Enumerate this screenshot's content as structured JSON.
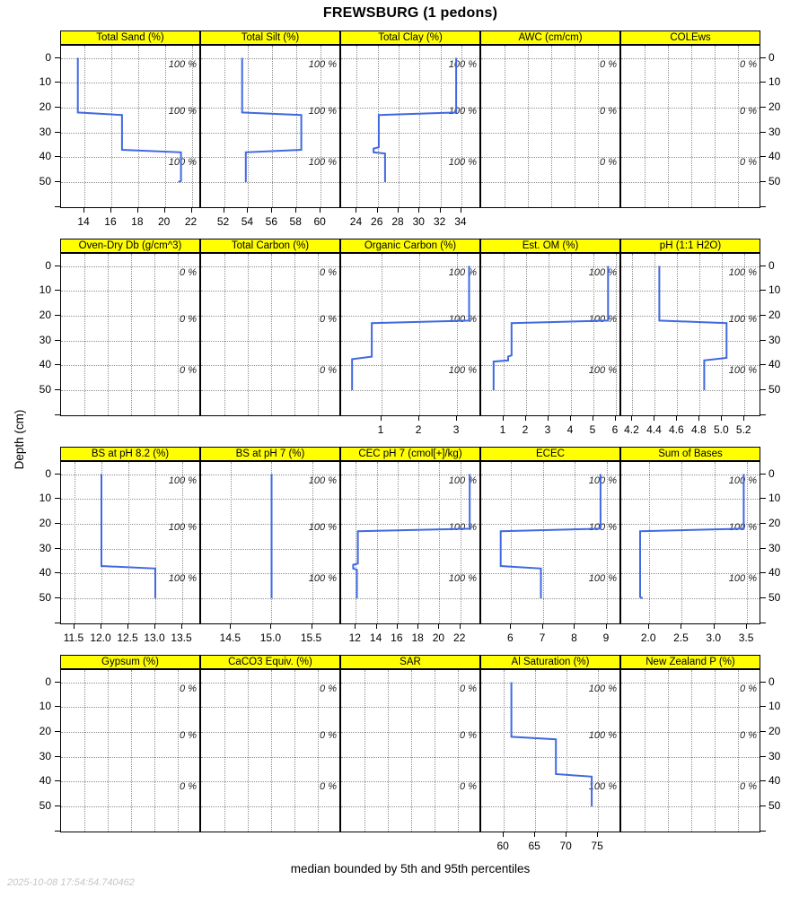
{
  "title": "FREWSBURG (1 pedons)",
  "caption": "median bounded by 5th and 95th percentiles",
  "timestamp": "2025-10-08 17:54:54.740462",
  "y_axis": {
    "label": "Depth (cm)",
    "ticks": [
      0,
      10,
      20,
      30,
      40,
      50
    ],
    "unlabeled_tick": 60
  },
  "colors": {
    "strip_bg": "#ffff00",
    "line": "#4169e1",
    "grid": "#8f8f8f",
    "pct_text": "#222222",
    "timestamp_text": "#c6c6c6"
  },
  "chart_data": {
    "type": "line",
    "title": "FREWSBURG (1 pedons)",
    "ylabel": "Depth (cm)",
    "ylim": [
      -5,
      63
    ],
    "grid": "dotted",
    "pct_label_depths": [
      2.8,
      21.3,
      42.2
    ],
    "depth_gridlines": [
      0,
      10,
      20,
      30,
      40,
      50,
      60
    ],
    "note": "profile points are [value, depth_cm]; pct labels are contributing fraction annotations",
    "panels": [
      {
        "id": "total-sand",
        "title": "Total Sand (%)",
        "xlim": [
          12.25,
          22.7
        ],
        "ticks": [
          14,
          16,
          18,
          20,
          22
        ],
        "tick_labels": [
          "14",
          "16",
          "18",
          "20",
          "22"
        ],
        "pct_labels": [
          "100 %",
          "100 %",
          "100 %"
        ],
        "profile": [
          [
            13.5,
            0
          ],
          [
            13.5,
            22
          ],
          [
            16.8,
            23
          ],
          [
            16.8,
            37
          ],
          [
            21.2,
            38
          ],
          [
            21.2,
            49.5
          ],
          [
            21.0,
            50
          ]
        ]
      },
      {
        "id": "total-silt",
        "title": "Total Silt (%)",
        "xlim": [
          50.1,
          61.7
        ],
        "ticks": [
          52,
          54,
          56,
          58,
          60
        ],
        "tick_labels": [
          "52",
          "54",
          "56",
          "58",
          "60"
        ],
        "pct_labels": [
          "100 %",
          "100 %",
          "100 %"
        ],
        "profile": [
          [
            53.5,
            0
          ],
          [
            53.5,
            22
          ],
          [
            58.4,
            23
          ],
          [
            58.4,
            37
          ],
          [
            53.8,
            38
          ],
          [
            53.8,
            50
          ]
        ]
      },
      {
        "id": "total-clay",
        "title": "Total Clay (%)",
        "xlim": [
          22.5,
          35.9
        ],
        "ticks": [
          24,
          26,
          28,
          30,
          32,
          34
        ],
        "tick_labels": [
          "24",
          "26",
          "28",
          "30",
          "32",
          "34"
        ],
        "pct_labels": [
          "100 %",
          "100 %",
          "100 %"
        ],
        "profile": [
          [
            33.5,
            0
          ],
          [
            33.5,
            22
          ],
          [
            26.1,
            23
          ],
          [
            26.1,
            36
          ],
          [
            25.6,
            36.5
          ],
          [
            25.6,
            38
          ],
          [
            26.7,
            38.5
          ],
          [
            26.7,
            50
          ]
        ]
      },
      {
        "id": "awc",
        "title": "AWC (cm/cm)",
        "xlim": [
          0,
          1
        ],
        "ticks": [],
        "tick_labels": [],
        "pct_labels": [
          "0 %",
          "0 %",
          "0 %"
        ],
        "profile": []
      },
      {
        "id": "colews",
        "title": "COLEws",
        "xlim": [
          0,
          1
        ],
        "ticks": [],
        "tick_labels": [],
        "pct_labels": [
          "0 %",
          "0 %",
          "0 %"
        ],
        "profile": []
      },
      {
        "id": "oven-dry-db",
        "title": "Oven-Dry Db (g/cm^3)",
        "xlim": [
          0,
          1
        ],
        "ticks": [],
        "tick_labels": [],
        "pct_labels": [
          "0 %",
          "0 %",
          "0 %"
        ],
        "profile": []
      },
      {
        "id": "total-carbon",
        "title": "Total Carbon (%)",
        "xlim": [
          0,
          1
        ],
        "ticks": [],
        "tick_labels": [],
        "pct_labels": [
          "0 %",
          "0 %",
          "0 %"
        ],
        "profile": []
      },
      {
        "id": "organic-carbon",
        "title": "Organic Carbon (%)",
        "xlim": [
          -0.07,
          3.64
        ],
        "ticks": [
          1,
          2,
          3
        ],
        "tick_labels": [
          "1",
          "2",
          "3"
        ],
        "pct_labels": [
          "100 %",
          "100 %",
          "100 %"
        ],
        "profile": [
          [
            3.32,
            0
          ],
          [
            3.32,
            22
          ],
          [
            0.74,
            23
          ],
          [
            0.74,
            36.5
          ],
          [
            0.22,
            37.5
          ],
          [
            0.22,
            50
          ]
        ]
      },
      {
        "id": "est-om",
        "title": "Est. OM (%)",
        "xlim": [
          0,
          6.24
        ],
        "ticks": [
          1,
          2,
          3,
          4,
          5,
          6
        ],
        "tick_labels": [
          "1",
          "2",
          "3",
          "4",
          "5",
          "6"
        ],
        "pct_labels": [
          "100 %",
          "100 %",
          "100 %"
        ],
        "profile": [
          [
            5.65,
            0
          ],
          [
            5.65,
            22
          ],
          [
            1.35,
            23
          ],
          [
            1.35,
            36
          ],
          [
            1.2,
            36.5
          ],
          [
            1.2,
            38
          ],
          [
            0.55,
            38.5
          ],
          [
            0.55,
            50
          ]
        ]
      },
      {
        "id": "ph-1-1-h2o",
        "title": "pH (1:1 H2O)",
        "xlim": [
          4.1,
          5.35
        ],
        "ticks": [
          4.2,
          4.4,
          4.6,
          4.8,
          5.0,
          5.2
        ],
        "tick_labels": [
          "4.2",
          "4.4",
          "4.6",
          "4.8",
          "5.0",
          "5.2"
        ],
        "pct_labels": [
          "100 %",
          "100 %",
          "100 %"
        ],
        "profile": [
          [
            4.44,
            0
          ],
          [
            4.44,
            22
          ],
          [
            5.04,
            23
          ],
          [
            5.04,
            37
          ],
          [
            4.84,
            38
          ],
          [
            4.84,
            50
          ]
        ]
      },
      {
        "id": "bs-ph-8-2",
        "title": "BS at pH 8.2 (%)",
        "xlim": [
          11.25,
          13.85
        ],
        "ticks": [
          11.5,
          12.0,
          12.5,
          13.0,
          13.5
        ],
        "tick_labels": [
          "11.5",
          "12.0",
          "12.5",
          "13.0",
          "13.5"
        ],
        "pct_labels": [
          "100 %",
          "100 %",
          "100 %"
        ],
        "profile": [
          [
            12.0,
            0
          ],
          [
            12.0,
            37
          ],
          [
            13.0,
            38
          ],
          [
            13.0,
            50
          ]
        ]
      },
      {
        "id": "bs-ph-7",
        "title": "BS at pH 7 (%)",
        "xlim": [
          14.13,
          15.86
        ],
        "ticks": [
          14.5,
          15.0,
          15.5
        ],
        "tick_labels": [
          "14.5",
          "15.0",
          "15.5"
        ],
        "pct_labels": [
          "100 %",
          "100 %",
          "100 %"
        ],
        "profile": [
          [
            15.0,
            0
          ],
          [
            15.0,
            50
          ]
        ]
      },
      {
        "id": "cec-ph-7",
        "title": "CEC pH 7 (cmol[+]/kg)",
        "xlim": [
          10.6,
          24.0
        ],
        "ticks": [
          12,
          14,
          16,
          18,
          20,
          22
        ],
        "tick_labels": [
          "12",
          "14",
          "16",
          "18",
          "20",
          "22"
        ],
        "pct_labels": [
          "100 %",
          "100 %",
          "100 %"
        ],
        "profile": [
          [
            22.9,
            0
          ],
          [
            22.9,
            22
          ],
          [
            12.2,
            23
          ],
          [
            12.2,
            36
          ],
          [
            11.75,
            36.5
          ],
          [
            11.75,
            38
          ],
          [
            12.1,
            38.5
          ],
          [
            12.1,
            50
          ]
        ]
      },
      {
        "id": "ecec",
        "title": "ECEC",
        "xlim": [
          5.06,
          9.45
        ],
        "ticks": [
          6,
          7,
          8,
          9
        ],
        "tick_labels": [
          "6",
          "7",
          "8",
          "9"
        ],
        "pct_labels": [
          "100 %",
          "100 %",
          "100 %"
        ],
        "profile": [
          [
            8.8,
            0
          ],
          [
            8.8,
            22
          ],
          [
            5.67,
            23
          ],
          [
            5.67,
            37
          ],
          [
            6.93,
            38
          ],
          [
            6.93,
            50
          ]
        ]
      },
      {
        "id": "sum-of-bases",
        "title": "Sum of Bases",
        "xlim": [
          1.57,
          3.72
        ],
        "ticks": [
          2.0,
          2.5,
          3.0,
          3.5
        ],
        "tick_labels": [
          "2.0",
          "2.5",
          "3.0",
          "3.5"
        ],
        "pct_labels": [
          "100 %",
          "100 %",
          "100 %"
        ],
        "profile": [
          [
            3.45,
            0
          ],
          [
            3.45,
            22
          ],
          [
            1.86,
            23
          ],
          [
            1.86,
            49.5
          ],
          [
            1.9,
            50
          ]
        ]
      },
      {
        "id": "gypsum",
        "title": "Gypsum (%)",
        "xlim": [
          0,
          1
        ],
        "ticks": [],
        "tick_labels": [],
        "pct_labels": [
          "0 %",
          "0 %",
          "0 %"
        ],
        "profile": []
      },
      {
        "id": "caco3-equiv",
        "title": "CaCO3 Equiv. (%)",
        "xlim": [
          0,
          1
        ],
        "ticks": [],
        "tick_labels": [],
        "pct_labels": [
          "0 %",
          "0 %",
          "0 %"
        ],
        "profile": []
      },
      {
        "id": "sar",
        "title": "SAR",
        "xlim": [
          0,
          1
        ],
        "ticks": [],
        "tick_labels": [],
        "pct_labels": [
          "0 %",
          "0 %",
          "0 %"
        ],
        "profile": []
      },
      {
        "id": "al-saturation",
        "title": "Al Saturation (%)",
        "xlim": [
          56.4,
          78.7
        ],
        "ticks": [
          60,
          65,
          70,
          75
        ],
        "tick_labels": [
          "60",
          "65",
          "70",
          "75"
        ],
        "pct_labels": [
          "100 %",
          "100 %",
          "100 %"
        ],
        "profile": [
          [
            61.2,
            0
          ],
          [
            61.2,
            22
          ],
          [
            68.3,
            23
          ],
          [
            68.3,
            37
          ],
          [
            74.0,
            38
          ],
          [
            74.0,
            50
          ]
        ]
      },
      {
        "id": "new-zealand-p",
        "title": "New Zealand P (%)",
        "xlim": [
          0,
          1
        ],
        "ticks": [],
        "tick_labels": [],
        "pct_labels": [
          "0 %",
          "0 %",
          "0 %"
        ],
        "profile": []
      }
    ]
  }
}
